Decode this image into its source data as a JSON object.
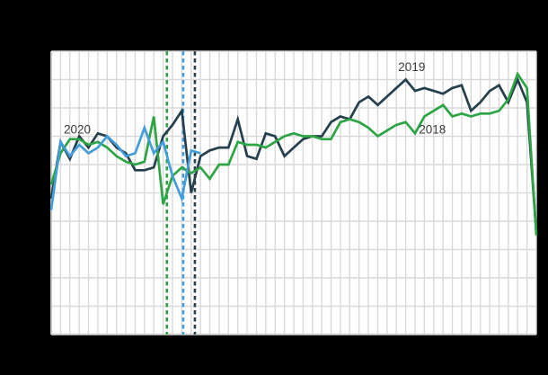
{
  "figure": {
    "background_color": "#000000",
    "plot_background_color": "#ffffff",
    "grid_color": "#d9d9d9",
    "axis_color": "#c2c2c2",
    "label_color": "#3a3a3a"
  },
  "chart_data": {
    "type": "line",
    "x_unit": "week of year",
    "x_range": [
      1,
      53
    ],
    "ylim": [
      0,
      100
    ],
    "y_divisions": 10,
    "grid": "on",
    "axis_tick_labels_visible": false,
    "legend_position": "inline-labels",
    "annotations": [
      {
        "text": "2020",
        "week": 2.35,
        "value": 71
      },
      {
        "text": "2019",
        "week": 38.2,
        "value": 93
      },
      {
        "text": "2018",
        "week": 40.4,
        "value": 71
      }
    ],
    "event_lines": [
      {
        "series": "2018",
        "week": 13.4,
        "color": "#2da544",
        "style": "dashed"
      },
      {
        "series": "2020",
        "week": 15.15,
        "color": "#429edb",
        "style": "dashed"
      },
      {
        "series": "2019",
        "week": 16.4,
        "color": "#263f4d",
        "style": "dashed"
      }
    ],
    "series": [
      {
        "name": "2019",
        "color": "#263f4d",
        "start_week": 1,
        "values": [
          48,
          68,
          62,
          70,
          66,
          71,
          70,
          66,
          64,
          58,
          58,
          59,
          70,
          74,
          79,
          50,
          63,
          65,
          66,
          66,
          76,
          63,
          62,
          71,
          70,
          63,
          66,
          69,
          70,
          70,
          75,
          77,
          76,
          82,
          84,
          81,
          84,
          87,
          90,
          86,
          87,
          86,
          85,
          87,
          88,
          79,
          82,
          86,
          88,
          82,
          90,
          82,
          36
        ]
      },
      {
        "name": "2018",
        "color": "#2da544",
        "start_week": 1,
        "values": [
          53,
          64,
          69,
          69,
          67,
          68,
          66,
          63,
          61,
          60,
          61,
          77,
          46,
          56,
          59,
          57,
          59,
          55,
          60,
          60,
          68,
          67,
          67,
          66,
          68,
          70,
          71,
          70,
          70,
          69,
          69,
          75,
          76,
          75,
          73,
          70,
          72,
          74,
          75,
          71,
          77,
          79,
          81,
          77,
          78,
          77,
          78,
          78,
          79,
          83,
          92,
          87,
          35
        ]
      },
      {
        "name": "2020",
        "color": "#429edb",
        "start_week": 1,
        "values": [
          44,
          68,
          63,
          67,
          64,
          66,
          70,
          67,
          63,
          64,
          73,
          64,
          68,
          56,
          48,
          65,
          64
        ]
      }
    ]
  }
}
